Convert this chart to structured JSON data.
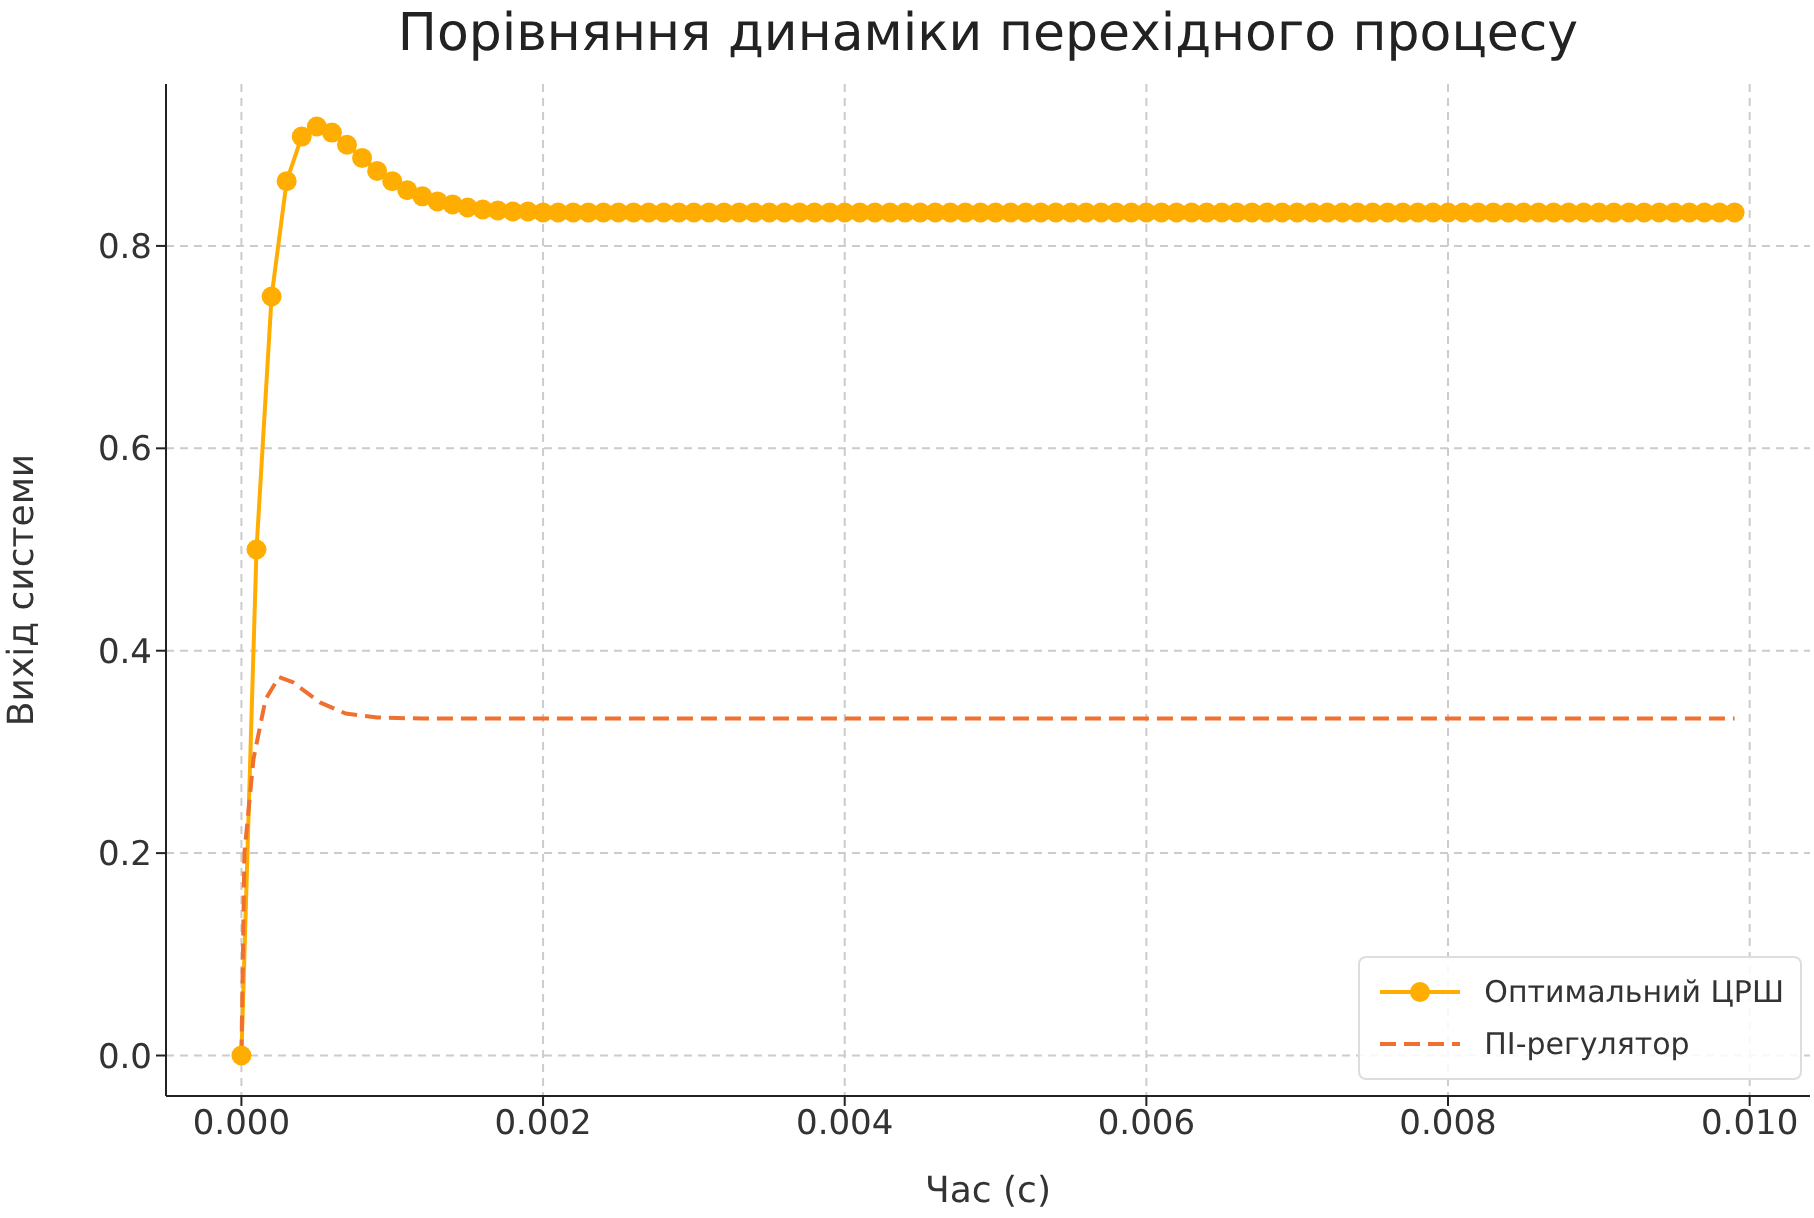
{
  "chart_data": {
    "type": "line",
    "title": "Порівняння динаміки перехідного процесу",
    "xlabel": "Час (с)",
    "ylabel": "Вихід системи",
    "x": [
      0,
      0.0001,
      0.0002,
      0.0003,
      0.0004,
      0.0005,
      0.0006,
      0.0007,
      0.0008,
      0.0009,
      0.001,
      0.0011,
      0.0012,
      0.0013,
      0.0014,
      0.0015,
      0.0016,
      0.0017,
      0.0018,
      0.0019,
      0.002,
      0.0021,
      0.0022,
      0.0023,
      0.0024,
      0.0025,
      0.0026,
      0.0027,
      0.0028,
      0.0029,
      0.003,
      0.0031,
      0.0032,
      0.0033,
      0.0034,
      0.0035,
      0.0036,
      0.0037,
      0.0038,
      0.0039,
      0.004,
      0.0041,
      0.0042,
      0.0043,
      0.0044,
      0.0045,
      0.0046,
      0.0047,
      0.0048,
      0.0049,
      0.005,
      0.0051,
      0.0052,
      0.0053,
      0.0054,
      0.0055,
      0.0056,
      0.0057,
      0.0058,
      0.0059,
      0.006,
      0.0061,
      0.0062,
      0.0063,
      0.0064,
      0.0065,
      0.0066,
      0.0067,
      0.0068,
      0.0069,
      0.007,
      0.0071,
      0.0072,
      0.0073,
      0.0074,
      0.0075,
      0.0076,
      0.0077,
      0.0078,
      0.0079,
      0.008,
      0.0081,
      0.0082,
      0.0083,
      0.0084,
      0.0085,
      0.0086,
      0.0087,
      0.0088,
      0.0089,
      0.009,
      0.0091,
      0.0092,
      0.0093,
      0.0094,
      0.0095,
      0.0096,
      0.0097,
      0.0098,
      0.0099
    ],
    "series": [
      {
        "name": "Оптимальний ЦРШ",
        "color": "#ffad00",
        "marker": "circle",
        "line_style": "solid",
        "values": [
          0,
          0.5,
          0.75,
          0.864,
          0.908,
          0.918,
          0.912,
          0.9,
          0.887,
          0.874,
          0.864,
          0.855,
          0.849,
          0.844,
          0.841,
          0.838,
          0.836,
          0.835,
          0.834,
          0.834,
          0.833,
          0.833,
          0.833,
          0.833,
          0.833,
          0.833,
          0.833,
          0.833,
          0.833,
          0.833,
          0.833,
          0.833,
          0.833,
          0.833,
          0.833,
          0.833,
          0.833,
          0.833,
          0.833,
          0.833,
          0.833,
          0.833,
          0.833,
          0.833,
          0.833,
          0.833,
          0.833,
          0.833,
          0.833,
          0.833,
          0.833,
          0.833,
          0.833,
          0.833,
          0.833,
          0.833,
          0.833,
          0.833,
          0.833,
          0.833,
          0.833,
          0.833,
          0.833,
          0.833,
          0.833,
          0.833,
          0.833,
          0.833,
          0.833,
          0.833,
          0.833,
          0.833,
          0.833,
          0.833,
          0.833,
          0.833,
          0.833,
          0.833,
          0.833,
          0.833,
          0.833,
          0.833,
          0.833,
          0.833,
          0.833,
          0.833,
          0.833,
          0.833,
          0.833,
          0.833,
          0.833,
          0.833,
          0.833,
          0.833,
          0.833,
          0.833,
          0.833,
          0.833,
          0.833,
          0.833
        ]
      },
      {
        "name": "ПІ-регулятор",
        "color": "#f07030",
        "marker": "none",
        "line_style": "dashed",
        "x": [
          0,
          2e-05,
          8e-05,
          0.00016,
          0.00025,
          0.00034,
          0.00052,
          0.00069,
          0.0009,
          0.0012,
          0.0016,
          0.002,
          0.004,
          0.006,
          0.008,
          0.0099
        ],
        "values": [
          0,
          0.2,
          0.293,
          0.352,
          0.374,
          0.369,
          0.349,
          0.338,
          0.334,
          0.333,
          0.333,
          0.333,
          0.333,
          0.333,
          0.333,
          0.333
        ]
      }
    ],
    "xlim": [
      -0.0005,
      0.0104
    ],
    "xticks": [
      {
        "value": 0,
        "label": "0.000"
      },
      {
        "value": 0.002,
        "label": "0.002"
      },
      {
        "value": 0.004,
        "label": "0.004"
      },
      {
        "value": 0.006,
        "label": "0.006"
      },
      {
        "value": 0.008,
        "label": "0.008"
      },
      {
        "value": 0.01,
        "label": "0.010"
      }
    ],
    "ylim": [
      -0.04,
      0.96
    ],
    "yticks": [
      {
        "value": 0,
        "label": "0.0"
      },
      {
        "value": 0.2,
        "label": "0.2"
      },
      {
        "value": 0.4,
        "label": "0.4"
      },
      {
        "value": 0.6,
        "label": "0.6"
      },
      {
        "value": 0.8,
        "label": "0.8"
      }
    ],
    "grid": true,
    "legend": "bottom right"
  }
}
